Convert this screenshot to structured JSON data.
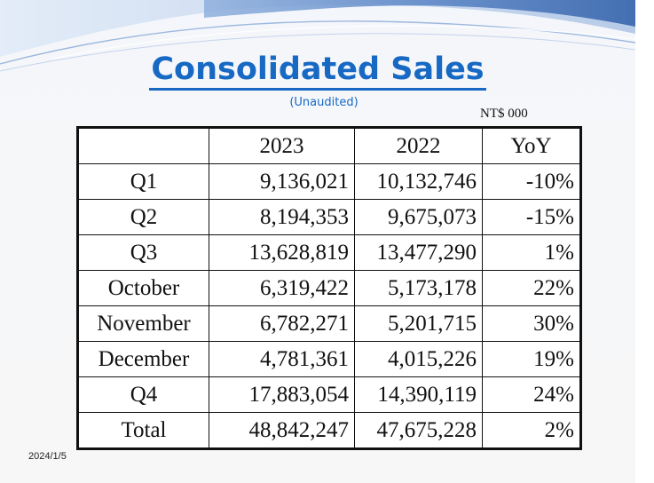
{
  "slide": {
    "title": "Consolidated Sales",
    "subtitle": "(Unaudited)",
    "unit": "NT$ 000",
    "date": "2024/1/5"
  },
  "table": {
    "headers": [
      "",
      "2023",
      "2022",
      "YoY"
    ],
    "rows": [
      {
        "label": "Q1",
        "y2023": "9,136,021",
        "y2022": "10,132,746",
        "yoy": "-10%"
      },
      {
        "label": "Q2",
        "y2023": "8,194,353",
        "y2022": "9,675,073",
        "yoy": "-15%"
      },
      {
        "label": "Q3",
        "y2023": "13,628,819",
        "y2022": "13,477,290",
        "yoy": "1%"
      },
      {
        "label": "October",
        "y2023": "6,319,422",
        "y2022": "5,173,178",
        "yoy": "22%"
      },
      {
        "label": "November",
        "y2023": "6,782,271",
        "y2022": "5,201,715",
        "yoy": "30%"
      },
      {
        "label": "December",
        "y2023": "4,781,361",
        "y2022": "4,015,226",
        "yoy": "19%"
      },
      {
        "label": "Q4",
        "y2023": "17,883,054",
        "y2022": "14,390,119",
        "yoy": "24%"
      },
      {
        "label": "Total",
        "y2023": "48,842,247",
        "y2022": "47,675,228",
        "yoy": "2%"
      }
    ]
  },
  "colors": {
    "title": "#1769c4",
    "swoosh_dark": "#5b86c6",
    "swoosh_light": "#c8d9ef"
  }
}
